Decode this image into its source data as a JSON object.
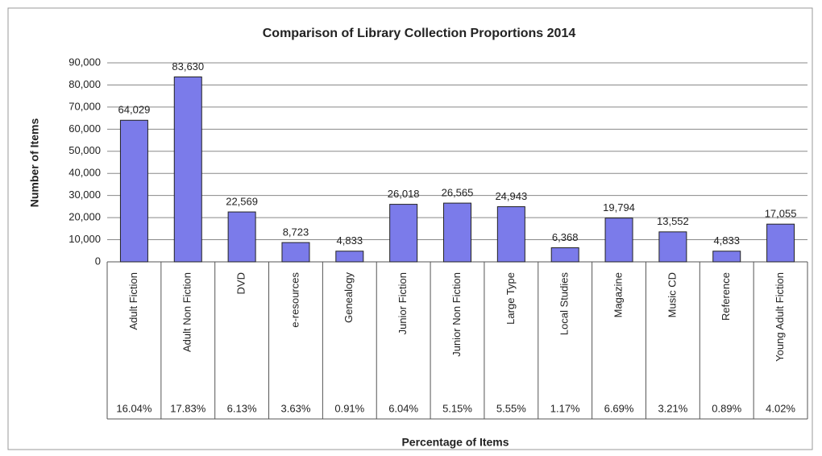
{
  "chart_data": {
    "type": "bar",
    "title": "Comparison of Library Collection Proportions 2014",
    "y_label": "Number of Items",
    "x_label": "Percentage of Items",
    "categories": [
      "Adult Fiction",
      "Adult Non Fiction",
      "DVD",
      "e-resources",
      "Genealogy",
      "Junior Fiction",
      "Junior Non Fiction",
      "Large Type",
      "Local Studies",
      "Magazine",
      "Music CD",
      "Reference",
      "Young Adult Fiction"
    ],
    "values": [
      64029,
      83630,
      22569,
      8723,
      4833,
      26018,
      26565,
      24943,
      6368,
      19794,
      13552,
      4833,
      17055
    ],
    "value_labels": [
      "64,029",
      "83,630",
      "22,569",
      "8,723",
      "4,833",
      "26,018",
      "26,565",
      "24,943",
      "6,368",
      "19,794",
      "13,552",
      "4,833",
      "17,055"
    ],
    "percentages": [
      "16.04%",
      "17.83%",
      "6.13%",
      "3.63%",
      "0.91%",
      "6.04%",
      "5.15%",
      "5.55%",
      "1.17%",
      "6.69%",
      "3.21%",
      "0.89%",
      "4.02%"
    ],
    "color": "#7b7bea",
    "ylim": [
      0,
      90000
    ],
    "yticks": [
      0,
      {
        "value": 10000,
        "label": "10,000"
      },
      {
        "value": 20000,
        "label": "20,000"
      },
      {
        "value": 30000,
        "label": "30,000"
      },
      {
        "value": 40000,
        "label": "40,000"
      },
      {
        "value": 50000,
        "label": "50,000"
      },
      {
        "value": 60000,
        "label": "60,000"
      },
      {
        "value": 70000,
        "label": "70,000"
      },
      {
        "value": 80000,
        "label": "80,000"
      },
      {
        "value": 90000,
        "label": "90,000"
      }
    ],
    "grid": true
  }
}
